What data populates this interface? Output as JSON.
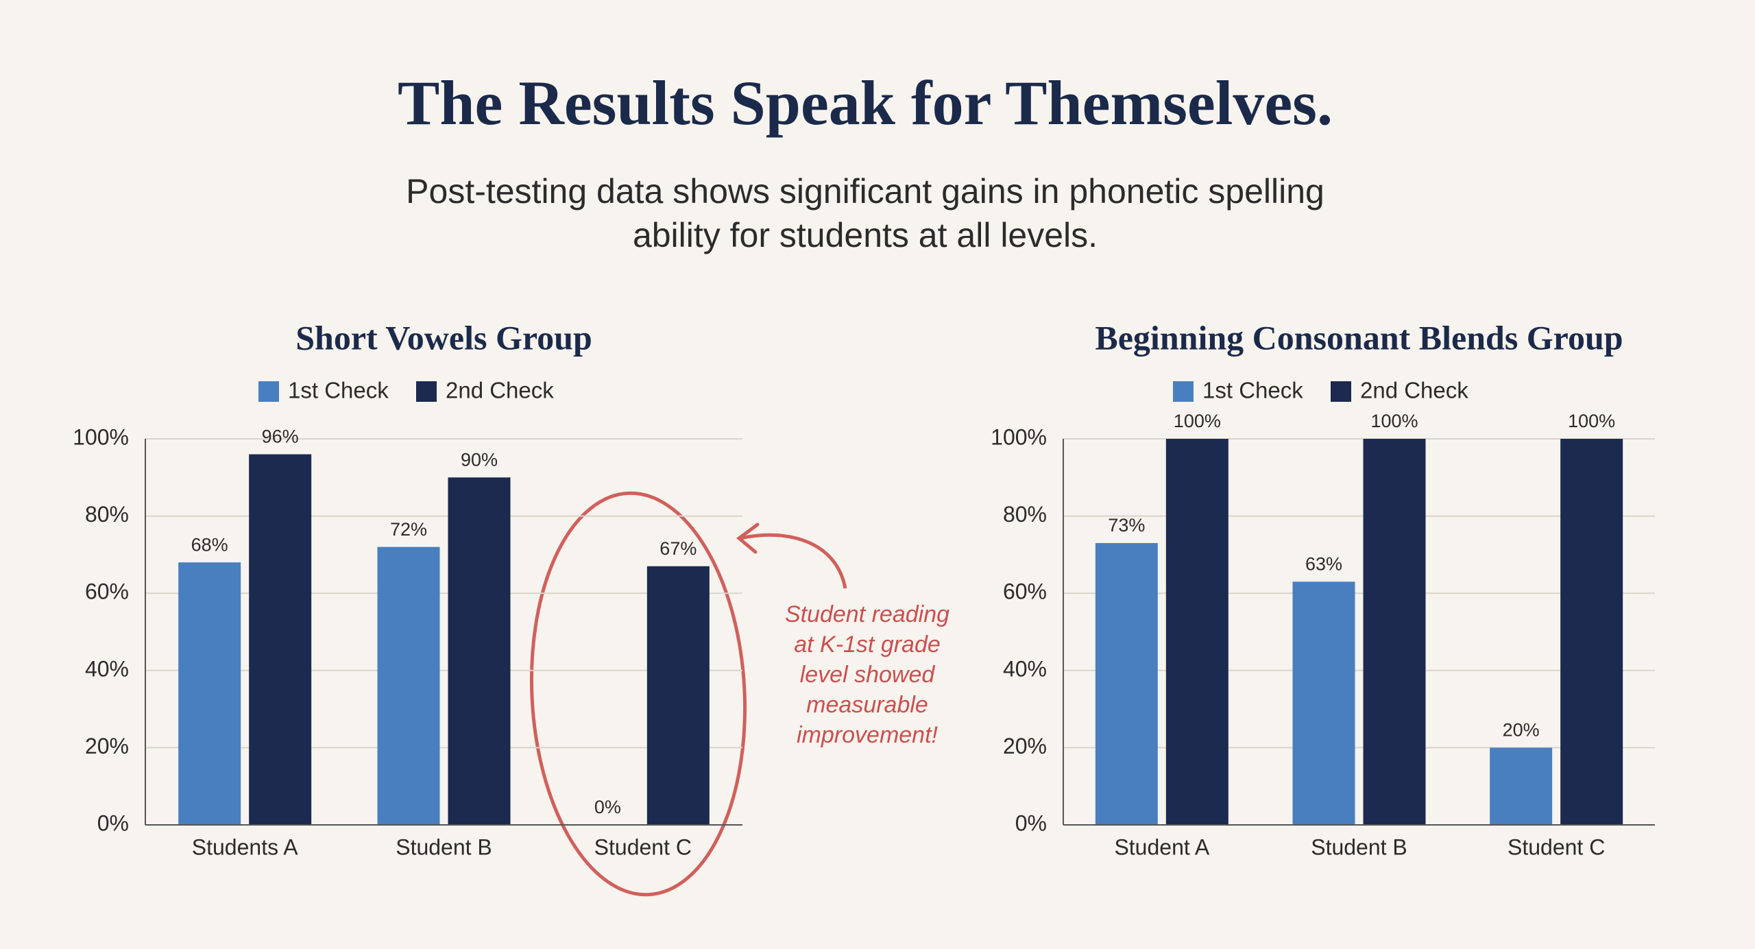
{
  "title": "The Results Speak for Themselves.",
  "subtitle": [
    "Post-testing data shows significant gains in phonetic spelling",
    "ability for students at all levels."
  ],
  "chart_data": [
    {
      "type": "bar",
      "title": "Short Vowels Group",
      "categories": [
        "Students A",
        "Student B",
        "Student C"
      ],
      "series": [
        {
          "name": "1st Check",
          "color": "#4a7fbf",
          "values": [
            68,
            72,
            0
          ],
          "value_labels": [
            "68%",
            "72%",
            "0%"
          ]
        },
        {
          "name": "2nd Check",
          "color": "#1b2a4e",
          "values": [
            96,
            90,
            67
          ],
          "value_labels": [
            "96%",
            "90%",
            "67%"
          ]
        }
      ],
      "ylim": [
        0,
        100
      ],
      "yticks": [
        {
          "value": 0,
          "label": "0%"
        },
        {
          "value": 20,
          "label": "20%"
        },
        {
          "value": 40,
          "label": "40%"
        },
        {
          "value": 60,
          "label": "60%"
        },
        {
          "value": 80,
          "label": "80%"
        },
        {
          "value": 100,
          "label": "100%"
        }
      ],
      "grid": true,
      "annotation": [
        "Student reading",
        "at K-1st grade",
        "level showed",
        "measurable",
        "improvement!"
      ]
    },
    {
      "type": "bar",
      "title": "Beginning Consonant Blends Group",
      "categories": [
        "Student A",
        "Student B",
        "Student C"
      ],
      "series": [
        {
          "name": "1st Check",
          "color": "#4a7fbf",
          "values": [
            73,
            63,
            20
          ],
          "value_labels": [
            "73%",
            "63%",
            "20%"
          ]
        },
        {
          "name": "2nd Check",
          "color": "#1b2a4e",
          "values": [
            100,
            100,
            100
          ],
          "value_labels": [
            "100%",
            "100%",
            "100%"
          ]
        }
      ],
      "ylim": [
        0,
        100
      ],
      "yticks": [
        {
          "value": 0,
          "label": "0%"
        },
        {
          "value": 20,
          "label": "20%"
        },
        {
          "value": 40,
          "label": "40%"
        },
        {
          "value": 60,
          "label": "60%"
        },
        {
          "value": 80,
          "label": "80%"
        },
        {
          "value": 100,
          "label": "100%"
        }
      ],
      "grid": true
    }
  ]
}
